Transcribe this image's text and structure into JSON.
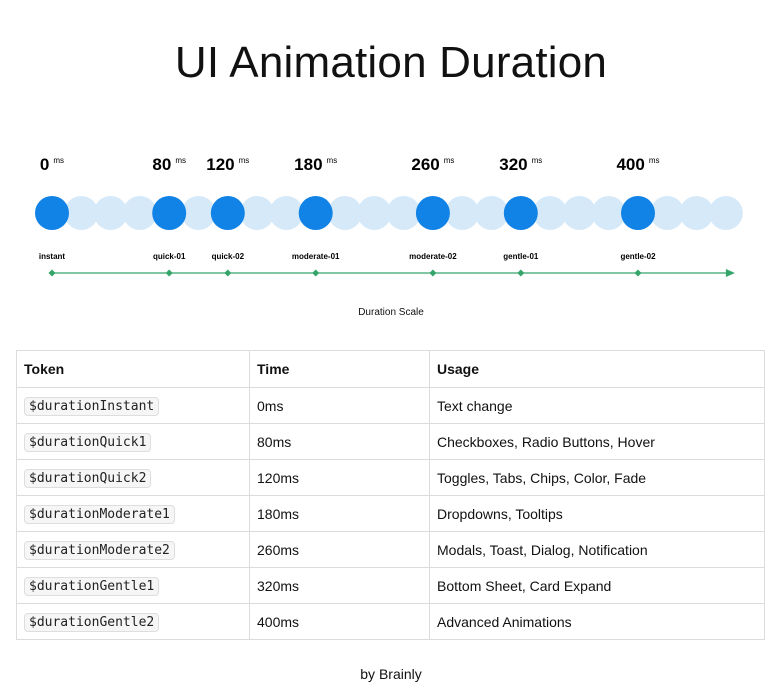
{
  "title": "UI Animation Duration",
  "scale": {
    "unit": "ms",
    "caption": "Duration Scale",
    "levels": [
      {
        "value": "0",
        "label": "instant"
      },
      {
        "value": "80",
        "label": "quick-01"
      },
      {
        "value": "120",
        "label": "quick-02"
      },
      {
        "value": "180",
        "label": "moderate-01"
      },
      {
        "value": "260",
        "label": "moderate-02"
      },
      {
        "value": "320",
        "label": "gentle-01"
      },
      {
        "value": "400",
        "label": "gentle-02"
      }
    ],
    "colors": {
      "active": "#1183e6",
      "inactive": "#d6e9f9",
      "line": "#34a56a"
    }
  },
  "table": {
    "headers": [
      "Token",
      "Time",
      "Usage"
    ],
    "rows": [
      {
        "token": "$durationInstant",
        "time": "0ms",
        "usage": "Text change"
      },
      {
        "token": "$durationQuick1",
        "time": "80ms",
        "usage": "Checkboxes, Radio Buttons, Hover"
      },
      {
        "token": "$durationQuick2",
        "time": "120ms",
        "usage": "Toggles, Tabs, Chips, Color, Fade"
      },
      {
        "token": "$durationModerate1",
        "time": "180ms",
        "usage": "Dropdowns, Tooltips"
      },
      {
        "token": "$durationModerate2",
        "time": "260ms",
        "usage": "Modals, Toast, Dialog, Notification"
      },
      {
        "token": "$durationGentle1",
        "time": "320ms",
        "usage": "Bottom Sheet, Card Expand"
      },
      {
        "token": "$durationGentle2",
        "time": "400ms",
        "usage": "Advanced Animations"
      }
    ]
  },
  "footer": {
    "byline": "by Brainly"
  }
}
